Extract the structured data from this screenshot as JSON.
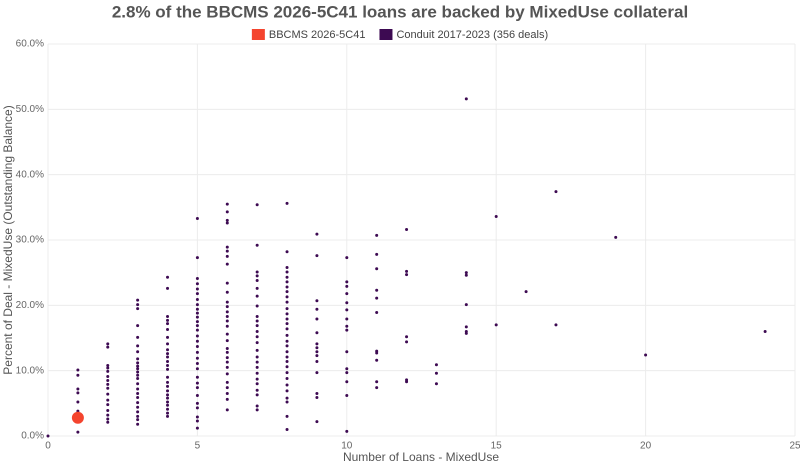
{
  "chart_data": {
    "type": "scatter",
    "title": "2.8% of the BBCMS 2026-5C41 loans are backed by MixedUse collateral",
    "x_label": "Number of Loans - MixedUse",
    "y_label": "Percent of Deal - MixedUse (Outstanding Balance)",
    "xlim": [
      0,
      25
    ],
    "ylim": [
      0,
      60
    ],
    "xticks": [
      0,
      5,
      10,
      15,
      20,
      25
    ],
    "yticks": [
      {
        "value": 0,
        "label": "0.0%"
      },
      {
        "value": 10,
        "label": "10.0%"
      },
      {
        "value": 20,
        "label": "20.0%"
      },
      {
        "value": 30,
        "label": "30.0%"
      },
      {
        "value": 40,
        "label": "40.0%"
      },
      {
        "value": 50,
        "label": "50.0%"
      },
      {
        "value": 60,
        "label": "60.0%"
      }
    ],
    "grid": true,
    "legend": "top",
    "series": [
      {
        "name": "BBCMS 2026-5C41",
        "color": "#f4442e",
        "x": [
          1
        ],
        "values": [
          2.8
        ]
      },
      {
        "name": "Conduit 2017-2023 (356 deals)",
        "color": "#3d0a52",
        "x": [
          0,
          1,
          1,
          1,
          1,
          1,
          1,
          1,
          2,
          2,
          2,
          2,
          2,
          2,
          2,
          2,
          2,
          2,
          2,
          2,
          2,
          2,
          2,
          2,
          3,
          3,
          3,
          3,
          3,
          3,
          3,
          3,
          3,
          3,
          3,
          3,
          3,
          3,
          3,
          3,
          3,
          3,
          3,
          3,
          3,
          3,
          3,
          3,
          4,
          4,
          4,
          4,
          4,
          4,
          4,
          4,
          4,
          4,
          4,
          4,
          4,
          4,
          4,
          4,
          4,
          4,
          4,
          4,
          4,
          4,
          4,
          4,
          4,
          5,
          5,
          5,
          5,
          5,
          5,
          5,
          5,
          5,
          5,
          5,
          5,
          5,
          5,
          5,
          5,
          5,
          5,
          5,
          5,
          5,
          5,
          5,
          5,
          5,
          5,
          5,
          5,
          5,
          5,
          6,
          6,
          6,
          6,
          6,
          6,
          6,
          6,
          6,
          6,
          6,
          6,
          6,
          6,
          6,
          6,
          6,
          6,
          6,
          6,
          6,
          6,
          6,
          6,
          6,
          6,
          6,
          6,
          6,
          7,
          7,
          7,
          7,
          7,
          7,
          7,
          7,
          7,
          7,
          7,
          7,
          7,
          7,
          7,
          7,
          7,
          7,
          7,
          7,
          7,
          7,
          7,
          7,
          7,
          8,
          8,
          8,
          8,
          8,
          8,
          8,
          8,
          8,
          8,
          8,
          8,
          8,
          8,
          8,
          8,
          8,
          8,
          8,
          8,
          8,
          8,
          8,
          8,
          8,
          8,
          8,
          8,
          8,
          8,
          9,
          9,
          9,
          9,
          9,
          9,
          9,
          9,
          9,
          9,
          9,
          9,
          9,
          9,
          9,
          10,
          10,
          10,
          10,
          10,
          10,
          10,
          10,
          10,
          10,
          10,
          10,
          10,
          10,
          10,
          11,
          11,
          11,
          11,
          11,
          11,
          11,
          11,
          11,
          11,
          11,
          12,
          12,
          12,
          12,
          12,
          12,
          12,
          13,
          13,
          13,
          14,
          14,
          14,
          14,
          14,
          14,
          14,
          15,
          15,
          16,
          17,
          17,
          19,
          20,
          24
        ],
        "values": [
          0,
          10.1,
          9.3,
          7.2,
          6.6,
          5.2,
          3.8,
          0.6,
          14.1,
          13.6,
          10.8,
          10.4,
          9.9,
          9.1,
          8.5,
          7.9,
          7.3,
          6.4,
          5.5,
          4.8,
          3.9,
          3.2,
          2.6,
          2.1,
          20.8,
          20.1,
          19.5,
          16.9,
          15.1,
          13.8,
          12.9,
          11.8,
          11.2,
          10.7,
          10.3,
          9.8,
          9.3,
          8.8,
          8.0,
          7.2,
          6.5,
          5.9,
          5.1,
          4.4,
          3.7,
          3.0,
          2.5,
          1.8,
          24.3,
          22.6,
          18.3,
          17.7,
          17.2,
          16.3,
          15.1,
          14.1,
          13.2,
          12.6,
          12.1,
          11.4,
          10.8,
          10.2,
          9.0,
          8.2,
          7.6,
          6.9,
          6.3,
          5.8,
          5.2,
          4.7,
          4.1,
          3.5,
          3.0,
          33.3,
          27.3,
          24.1,
          23.3,
          22.5,
          21.8,
          20.9,
          20.1,
          19.4,
          18.8,
          18.2,
          17.5,
          16.9,
          16.2,
          15.3,
          14.5,
          13.7,
          12.8,
          11.9,
          11.1,
          10.3,
          9.0,
          8.1,
          7.4,
          6.2,
          5.0,
          4.3,
          2.9,
          2.3,
          1.2,
          35.5,
          34.3,
          33.0,
          32.6,
          28.9,
          28.3,
          27.5,
          26.3,
          23.4,
          22.0,
          20.5,
          19.8,
          19.0,
          18.3,
          17.6,
          16.8,
          15.6,
          14.6,
          13.4,
          12.8,
          12.0,
          11.3,
          10.5,
          9.5,
          8.2,
          7.4,
          6.5,
          5.6,
          4.0,
          35.4,
          29.2,
          25.1,
          24.5,
          23.8,
          22.6,
          21.4,
          19.9,
          18.3,
          17.6,
          16.9,
          16.0,
          15.2,
          14.3,
          13.1,
          12.1,
          11.3,
          10.5,
          9.6,
          8.7,
          8.0,
          7.0,
          6.3,
          4.6,
          4.0,
          35.6,
          28.2,
          25.8,
          25.1,
          24.3,
          23.6,
          22.8,
          22.1,
          21.3,
          20.5,
          19.5,
          18.7,
          17.9,
          17.2,
          16.4,
          15.4,
          14.5,
          13.8,
          12.9,
          12.1,
          11.4,
          10.6,
          9.7,
          8.8,
          7.8,
          6.9,
          5.8,
          5.2,
          3.0,
          1.0,
          30.9,
          27.6,
          20.7,
          19.4,
          17.9,
          15.8,
          14.1,
          13.5,
          12.9,
          12.3,
          11.4,
          9.7,
          6.5,
          5.9,
          2.2,
          27.3,
          23.6,
          22.9,
          21.8,
          20.4,
          19.3,
          17.9,
          16.8,
          16.2,
          12.9,
          10.3,
          9.7,
          8.3,
          6.2,
          0.7,
          30.7,
          27.8,
          25.6,
          22.3,
          21.1,
          18.9,
          13.0,
          12.7,
          11.6,
          8.3,
          7.4,
          31.6,
          25.2,
          24.7,
          15.2,
          14.4,
          8.6,
          8.3,
          10.9,
          9.6,
          8.0,
          51.6,
          25.0,
          24.6,
          20.1,
          16.7,
          16.0,
          15.7,
          33.6,
          17.0,
          22.1,
          37.4,
          17.0,
          30.4,
          12.4,
          16.0
        ]
      }
    ]
  }
}
